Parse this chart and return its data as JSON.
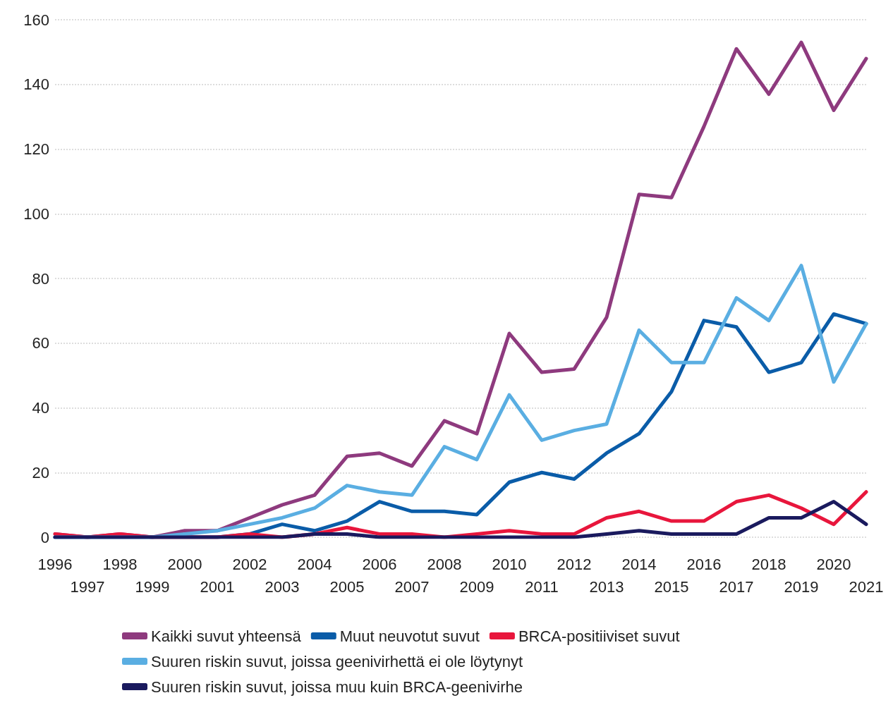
{
  "chart_data": {
    "type": "line",
    "categories": [
      "1996",
      "1997",
      "1998",
      "1999",
      "2000",
      "2001",
      "2002",
      "2003",
      "2004",
      "2005",
      "2006",
      "2007",
      "2008",
      "2009",
      "2010",
      "2011",
      "2012",
      "2013",
      "2014",
      "2015",
      "2016",
      "2017",
      "2018",
      "2019",
      "2020",
      "2021"
    ],
    "ylim": [
      0,
      160
    ],
    "yticks": [
      0,
      20,
      40,
      60,
      80,
      100,
      120,
      140,
      160
    ],
    "grid": "y",
    "legend": "bottom",
    "marker": "none",
    "line_style": "solid",
    "series": [
      {
        "name": "Kaikki suvut yhteensä",
        "color": "#8e3a7e",
        "values": [
          1,
          0,
          1,
          0,
          2,
          2,
          6,
          10,
          13,
          25,
          26,
          22,
          36,
          32,
          63,
          51,
          52,
          68,
          106,
          105,
          127,
          151,
          137,
          153,
          132,
          148
        ]
      },
      {
        "name": "Muut neuvotut suvut",
        "color": "#0a5ca8",
        "values": [
          0,
          0,
          0,
          0,
          0,
          0,
          1,
          4,
          2,
          5,
          11,
          8,
          8,
          7,
          17,
          20,
          18,
          26,
          32,
          45,
          67,
          65,
          51,
          54,
          69,
          66
        ]
      },
      {
        "name": "BRCA-positiiviset suvut",
        "color": "#e8163c",
        "values": [
          1,
          0,
          1,
          0,
          0,
          0,
          1,
          0,
          1,
          3,
          1,
          1,
          0,
          1,
          2,
          1,
          1,
          6,
          8,
          5,
          5,
          11,
          13,
          9,
          4,
          14
        ]
      },
      {
        "name": "Suuren riskin suvut, joissa geenivirhettä ei ole löytynyt",
        "color": "#5aaee2",
        "values": [
          0,
          0,
          0,
          0,
          1,
          2,
          4,
          6,
          9,
          16,
          14,
          13,
          28,
          24,
          44,
          30,
          33,
          35,
          64,
          54,
          54,
          74,
          67,
          84,
          48,
          66
        ]
      },
      {
        "name": "Suuren riskin suvut, joissa muu kuin BRCA-geenivirhe",
        "color": "#1a1a5e",
        "values": [
          0,
          0,
          0,
          0,
          0,
          0,
          0,
          0,
          1,
          1,
          0,
          0,
          0,
          0,
          0,
          0,
          0,
          1,
          2,
          1,
          1,
          1,
          6,
          6,
          11,
          4
        ]
      }
    ]
  }
}
